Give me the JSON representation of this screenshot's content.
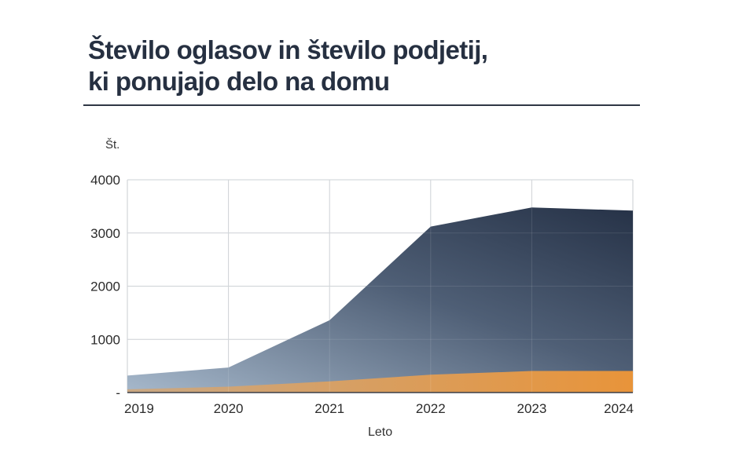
{
  "header": {
    "title_line1": "Število oglasov in število podjetij,",
    "title_line2": "ki ponujajo delo na domu"
  },
  "axes": {
    "y_unit": "Št.",
    "x_label": "Leto",
    "y_ticks": [
      "4000",
      "3000",
      "2000",
      "1000",
      "-"
    ],
    "x_ticks": [
      "2019",
      "2020",
      "2021",
      "2022",
      "2023",
      "2024"
    ]
  },
  "colors": {
    "series_ads_start": "#a6b8cb",
    "series_ads_end": "#263247",
    "series_companies_start": "#c9a884",
    "series_companies_end": "#e8943a",
    "grid": "#c9cdd2",
    "title": "#263041"
  },
  "chart_data": {
    "type": "area",
    "title": "Število oglasov in število podjetij, ki ponujajo delo na domu",
    "xlabel": "Leto",
    "ylabel": "Št.",
    "categories": [
      "2019",
      "2020",
      "2021",
      "2022",
      "2023",
      "2024"
    ],
    "series": [
      {
        "name": "Število oglasov",
        "values": [
          320,
          470,
          1360,
          3120,
          3480,
          3420
        ]
      },
      {
        "name": "Število podjetij",
        "values": [
          60,
          110,
          210,
          335,
          405,
          405
        ]
      }
    ],
    "ylim": [
      0,
      4000
    ],
    "y_ticks": [
      0,
      1000,
      2000,
      3000,
      4000
    ],
    "grid": true,
    "legend": "none",
    "stacked": false
  }
}
